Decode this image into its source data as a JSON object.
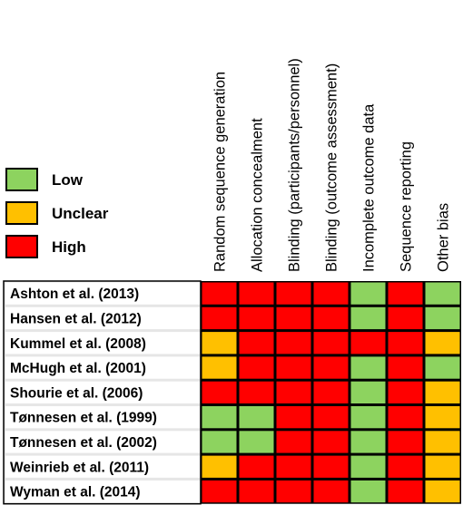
{
  "chart_data": {
    "type": "heatmap",
    "title": "",
    "legend": {
      "placement": "left",
      "items": [
        {
          "level": "low",
          "label": "Low"
        },
        {
          "level": "unclear",
          "label": "Unclear"
        },
        {
          "level": "high",
          "label": "High"
        }
      ]
    },
    "colors": {
      "low": "#8dd35f",
      "unclear": "#ffc000",
      "high": "#ff0000",
      "row_label_bg": "#e6e6e6",
      "grid": "#000000"
    },
    "columns": [
      "Random sequence generation",
      "Allocation concealment",
      "Blinding (participants/personnel)",
      "Blinding (outcome assessment)",
      "Incomplete outcome data",
      "Sequence reporting",
      "Other bias"
    ],
    "rows": [
      {
        "study": "Ashton et al. (2013)",
        "ratings": [
          "high",
          "high",
          "high",
          "high",
          "low",
          "high",
          "low"
        ]
      },
      {
        "study": "Hansen et al. (2012)",
        "ratings": [
          "high",
          "high",
          "high",
          "high",
          "low",
          "high",
          "low"
        ]
      },
      {
        "study": "Kummel et al. (2008)",
        "ratings": [
          "unclear",
          "high",
          "high",
          "high",
          "high",
          "high",
          "unclear"
        ]
      },
      {
        "study": "McHugh et al. (2001)",
        "ratings": [
          "unclear",
          "high",
          "high",
          "high",
          "low",
          "high",
          "low"
        ]
      },
      {
        "study": "Shourie et al. (2006)",
        "ratings": [
          "high",
          "high",
          "high",
          "high",
          "low",
          "high",
          "unclear"
        ]
      },
      {
        "study": "Tønnesen et al. (1999)",
        "ratings": [
          "low",
          "low",
          "high",
          "high",
          "low",
          "high",
          "unclear"
        ]
      },
      {
        "study": "Tønnesen et al. (2002)",
        "ratings": [
          "low",
          "low",
          "high",
          "high",
          "low",
          "high",
          "unclear"
        ]
      },
      {
        "study": "Weinrieb et al. (2011)",
        "ratings": [
          "unclear",
          "high",
          "high",
          "high",
          "low",
          "high",
          "unclear"
        ]
      },
      {
        "study": "Wyman et al. (2014)",
        "ratings": [
          "high",
          "high",
          "high",
          "high",
          "low",
          "high",
          "unclear"
        ]
      }
    ]
  }
}
